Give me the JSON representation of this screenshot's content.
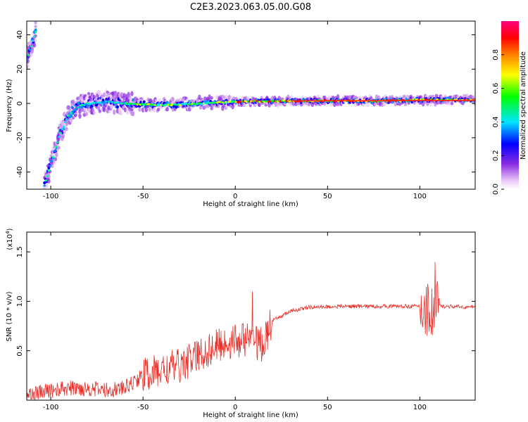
{
  "title": "C2E3.2023.063.05.00.G08",
  "colors": {
    "snr_line": "#e8302a",
    "frame": "#000000"
  },
  "chart_data": [
    {
      "type": "heatmap",
      "xlabel": "Height of straight line (km)",
      "ylabel": "Frequency (Hz)",
      "xlim": [
        -113,
        130
      ],
      "ylim": [
        -50,
        48
      ],
      "x_ticks": [
        -100,
        -50,
        0,
        50,
        100
      ],
      "y_ticks": [
        -40,
        -20,
        0,
        20,
        40
      ],
      "colorbar": {
        "label": "Normalized spectral amplitude",
        "range": [
          0,
          1
        ],
        "ticks": [
          "0.0",
          "0.2",
          "0.4",
          "0.6",
          "0.8"
        ],
        "colormap": "rainbow (white-violet-blue-cyan-green-yellow-orange-red-magenta)"
      },
      "ridge_frequency_hz": [
        {
          "x": -113,
          "y": 26
        },
        {
          "x": -108,
          "y": 42
        },
        {
          "x": -104,
          "y": -50
        },
        {
          "x": -100,
          "y": -36
        },
        {
          "x": -95,
          "y": -18
        },
        {
          "x": -90,
          "y": -6
        },
        {
          "x": -85,
          "y": -2
        },
        {
          "x": -80,
          "y": 0
        },
        {
          "x": -70,
          "y": 1
        },
        {
          "x": -60,
          "y": 0
        },
        {
          "x": -40,
          "y": -1
        },
        {
          "x": -20,
          "y": 0
        },
        {
          "x": 0,
          "y": 1
        },
        {
          "x": 30,
          "y": 1.5
        },
        {
          "x": 80,
          "y": 1.5
        },
        {
          "x": 100,
          "y": 2
        },
        {
          "x": 130,
          "y": 2
        }
      ]
    },
    {
      "type": "line",
      "xlabel": "Height of straight line (km)",
      "ylabel": "SNR (10 * v/v)",
      "y_multiplier_label": "(x10",
      "y_multiplier_exp": "4",
      "xlim": [
        -113,
        130
      ],
      "ylim": [
        0,
        1.7
      ],
      "x_ticks": [
        -100,
        -50,
        0,
        50,
        100
      ],
      "y_ticks": [
        "0.5",
        "1.0",
        "1.5"
      ],
      "series": [
        {
          "values_x10e4": [
            {
              "x": -113,
              "y": 0.05
            },
            {
              "x": -100,
              "y": 0.1
            },
            {
              "x": -90,
              "y": 0.12
            },
            {
              "x": -80,
              "y": 0.12
            },
            {
              "x": -70,
              "y": 0.1
            },
            {
              "x": -60,
              "y": 0.12
            },
            {
              "x": -50,
              "y": 0.25
            },
            {
              "x": -40,
              "y": 0.3
            },
            {
              "x": -30,
              "y": 0.35
            },
            {
              "x": -20,
              "y": 0.45
            },
            {
              "x": -10,
              "y": 0.55
            },
            {
              "x": 0,
              "y": 0.6
            },
            {
              "x": 5,
              "y": 0.62
            },
            {
              "x": 10,
              "y": 0.6
            },
            {
              "x": 15,
              "y": 0.55
            },
            {
              "x": 20,
              "y": 0.8
            },
            {
              "x": 30,
              "y": 0.9
            },
            {
              "x": 40,
              "y": 0.94
            },
            {
              "x": 60,
              "y": 0.95
            },
            {
              "x": 80,
              "y": 0.95
            },
            {
              "x": 100,
              "y": 0.95
            },
            {
              "x": 106,
              "y": 0.9
            },
            {
              "x": 110,
              "y": 0.95
            },
            {
              "x": 130,
              "y": 0.94
            }
          ]
        }
      ]
    }
  ]
}
